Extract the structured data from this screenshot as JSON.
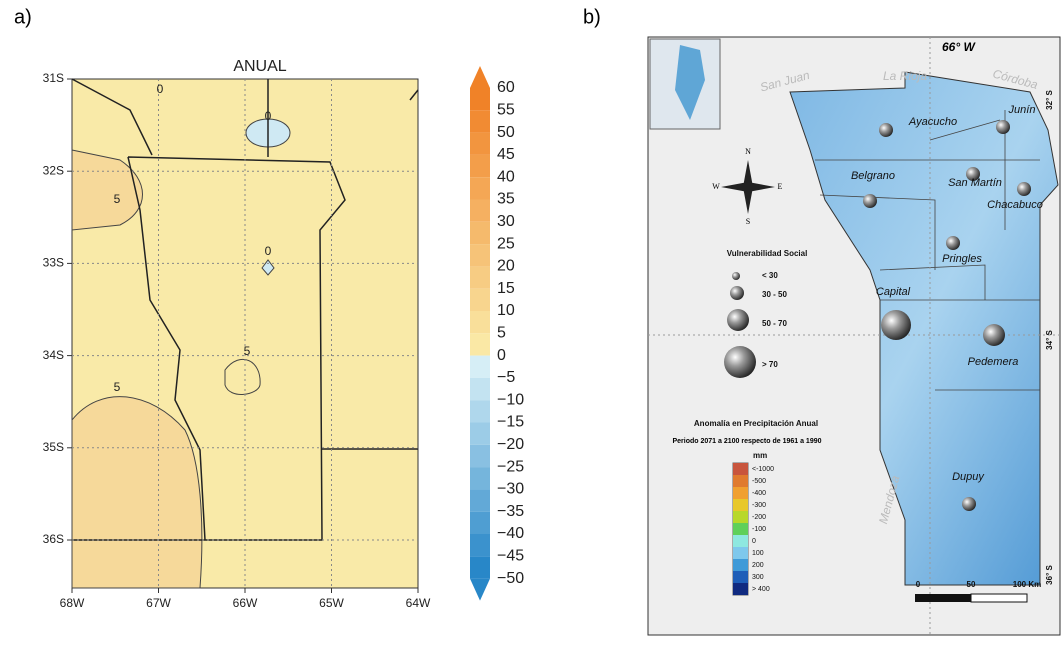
{
  "panel_a": {
    "label": "a)",
    "title": "ANUAL",
    "y_labels": [
      "31S",
      "32S",
      "33S",
      "34S",
      "35S",
      "36S"
    ],
    "x_labels": [
      "68W",
      "67W",
      "66W",
      "65W",
      "64W"
    ],
    "contour_labels": [
      "0",
      "0",
      "0",
      "5",
      "5",
      "5"
    ],
    "colorbar_labels": [
      "60",
      "55",
      "50",
      "45",
      "40",
      "35",
      "30",
      "25",
      "20",
      "15",
      "10",
      "5",
      "0",
      "−5",
      "−10",
      "−15",
      "−20",
      "−25",
      "−30",
      "−35",
      "−40",
      "−45",
      "−50"
    ]
  },
  "panel_b": {
    "label": "b)",
    "meridian": "66° W",
    "latitudes": [
      "32° S",
      "34° S",
      "36° S"
    ],
    "provinces": [
      "San Juan",
      "La Rioja",
      "Córdoba",
      "Mendoza"
    ],
    "departments": [
      "Ayacucho",
      "Junín",
      "Belgrano",
      "San Martín",
      "Chacabuco",
      "Pringles",
      "Capital",
      "Pedemera",
      "Dupuy"
    ],
    "compass": [
      "N",
      "W",
      "E",
      "S"
    ],
    "vulnerability": {
      "title": "Vulnerabilidad Social",
      "classes": [
        "< 30",
        "30 - 50",
        "50 - 70",
        "> 70"
      ]
    },
    "anomaly": {
      "title": "Anomalía en Precipitación Anual",
      "period": "Periodo 2071 a 2100 respecto de 1961 a 1990",
      "unit": "mm",
      "classes": [
        "<-1000",
        "-500",
        "-400",
        "-300",
        "-200",
        "-100",
        "0",
        "100",
        "200",
        "300",
        "> 400"
      ]
    },
    "scale": [
      "0",
      "50",
      "100 Km"
    ]
  }
}
